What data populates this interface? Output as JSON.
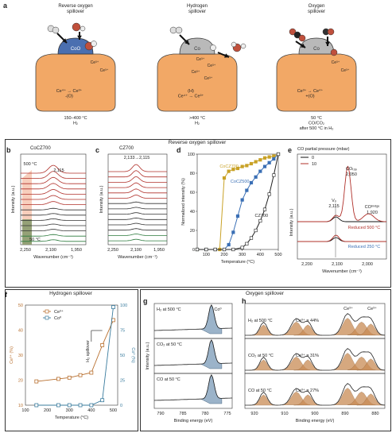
{
  "panel_a": {
    "label": "a",
    "schemes": [
      {
        "title": "Reverse oxygen\nspillover",
        "cap_label": "CoO",
        "ions": [
          "Ce³⁺",
          "Ce³⁺"
        ],
        "reaction": "Ce⁴⁺ → Ce³⁺\n-(O)",
        "condition": "150–400 °C\nH₂"
      },
      {
        "title": "Hydrogen\nspillover",
        "cap_label": "Co",
        "ions": [
          "Ce³⁺",
          "Ce³⁺",
          "Ce³⁺",
          "Ce³⁺"
        ],
        "reaction": "(H)\nCe⁴⁺ → Ce³⁺",
        "condition": ">400 °C\nH₂"
      },
      {
        "title": "Oxygen\nspillover",
        "cap_label": "Co",
        "ions": [
          "Ce³⁺",
          "Ce³⁺"
        ],
        "reaction": "Ce³⁺ → Ce⁴⁺\n+(O)",
        "condition": "50 °C\nCO/CO₂\nafter 500 °C in H₂"
      }
    ]
  },
  "section_headers": {
    "reverse": "Reverse oxygen spillover",
    "hydrogen": "Hydrogen spillover",
    "oxygen": "Oxygen spillover"
  },
  "panel_b": {
    "label": "b",
    "title": "CoCZ700",
    "ylabel": "Intensity (a.u.)",
    "xlabel": "Wavenumber (cm⁻¹)",
    "xticks": [
      "2,250",
      "2,100",
      "1,950"
    ],
    "ann_temp_top": "500 °C",
    "ann_peak": "2,115",
    "ann_temp_bottom": "50 °C"
  },
  "panel_c": {
    "label": "c",
    "title": "CZ700",
    "ylabel": "Intensity (a.u.)",
    "xlabel": "Wavenumber (cm⁻¹)",
    "xticks": [
      "2,250",
      "2,100",
      "1,950"
    ],
    "ann_peak": "2,133→2,115"
  },
  "panel_e": {
    "label": "e",
    "title": "CO partial pressure (mbar)",
    "legend": [
      "0",
      "10"
    ],
    "ylabel": "Intensity (a.u.)",
    "xlabel": "Wavenumber (cm⁻¹)",
    "xticks": [
      "2,200",
      "2,100",
      "2,000"
    ],
    "ann_vo": "Vₒ",
    "ann_vo_val": "2,115",
    "ann_cotop": "COₜₒₚ",
    "ann_cotop_val": "2,050",
    "ann_cobridge": "COᵇʳᶦᵈᵍᵉ",
    "ann_cobridge_val": "1,920",
    "ann_red500": "Reduced 500 °C",
    "ann_red250": "Reduced 250 °C"
  },
  "panel_g": {
    "label": "g",
    "xlabel": "Binding energy (eV)",
    "ylabel": "Intensity (a.u.)",
    "xticks": [
      "790",
      "785",
      "780",
      "775"
    ],
    "rows": [
      "H₂ at 500 °C",
      "CO₂ at 50 °C",
      "CO at 50 °C"
    ],
    "ann_co0": "Co⁰"
  },
  "panel_h": {
    "label": "h",
    "xlabel": "Binding energy (eV)",
    "xticks": [
      "920",
      "910",
      "900",
      "890",
      "880"
    ],
    "rows": [
      "H₂ at 500 °C",
      "CO₂ at 50 °C",
      "CO at 50 °C"
    ],
    "ce3_pct": [
      "Ce³⁺ = 44%",
      "Ce³⁺ = 31%",
      "Ce³⁺ = 27%"
    ],
    "ann_ce3": "Ce³⁺",
    "ann_ce3b": "Ce³⁺"
  },
  "chart_data": [
    {
      "id": "d",
      "type": "line",
      "label": "d",
      "title": "",
      "xlabel": "Temperature (°C)",
      "ylabel": "Normalized intensity (%)",
      "xlim": [
        50,
        500
      ],
      "ylim": [
        0,
        100
      ],
      "xticks": [
        100,
        200,
        300,
        400,
        500
      ],
      "yticks": [
        0,
        20,
        40,
        60,
        80,
        100
      ],
      "series": [
        {
          "name": "CoCZ700",
          "color": "#c9a227",
          "marker": "square-filled",
          "x": [
            50,
            100,
            150,
            175,
            200,
            225,
            250,
            275,
            300,
            325,
            350,
            375,
            400,
            425,
            450,
            475,
            500
          ],
          "y": [
            0,
            0,
            0,
            0,
            75,
            82,
            84,
            85,
            87,
            88,
            90,
            92,
            94,
            96,
            97,
            98,
            100
          ]
        },
        {
          "name": "CoCZ500",
          "color": "#3a6fb5",
          "marker": "square-filled",
          "x": [
            50,
            100,
            150,
            200,
            225,
            250,
            275,
            300,
            325,
            350,
            375,
            400,
            425,
            450,
            475,
            500
          ],
          "y": [
            0,
            0,
            0,
            0,
            5,
            18,
            35,
            52,
            62,
            70,
            76,
            82,
            87,
            91,
            95,
            100
          ]
        },
        {
          "name": "CZ700",
          "color": "#222222",
          "marker": "square-open",
          "x": [
            50,
            100,
            150,
            200,
            250,
            300,
            325,
            350,
            375,
            400,
            425,
            450,
            475,
            500
          ],
          "y": [
            0,
            0,
            0,
            0,
            0,
            2,
            6,
            12,
            20,
            30,
            42,
            58,
            78,
            100
          ]
        }
      ]
    },
    {
      "id": "f",
      "type": "line",
      "label": "f",
      "xlabel": "Temperature (°C)",
      "ylabel": "Ce³⁺ (%)",
      "ylabel_right": "Co⁰ (%)",
      "xlim": [
        100,
        520
      ],
      "ylim": [
        10,
        50
      ],
      "ylim_right": [
        0,
        100
      ],
      "xticks": [
        100,
        200,
        300,
        400,
        500
      ],
      "yticks": [
        10,
        20,
        30,
        40,
        50
      ],
      "yticks_right": [
        0,
        25,
        50,
        75,
        100
      ],
      "annotation": "H₂ spillover",
      "series": [
        {
          "name": "Ce³⁺",
          "axis": "left",
          "color": "#b86f2e",
          "x": [
            150,
            250,
            300,
            350,
            400,
            450,
            500
          ],
          "y": [
            19.5,
            20.5,
            21,
            22,
            23,
            34,
            44
          ]
        },
        {
          "name": "Co⁰",
          "axis": "right",
          "color": "#3a7c9e",
          "x": [
            150,
            250,
            300,
            350,
            400,
            450,
            500
          ],
          "y": [
            0,
            0,
            0,
            0,
            0,
            5,
            98
          ]
        }
      ]
    }
  ],
  "colors": {
    "support": "#f2a866",
    "support_edge": "#444",
    "coo": "#4a6fb0",
    "co": "#b9b9b9",
    "gold": "#c9a227",
    "blue": "#3a6fb5",
    "red": "#b0302a",
    "brown": "#b86f2e",
    "teal": "#3a7c9e"
  }
}
